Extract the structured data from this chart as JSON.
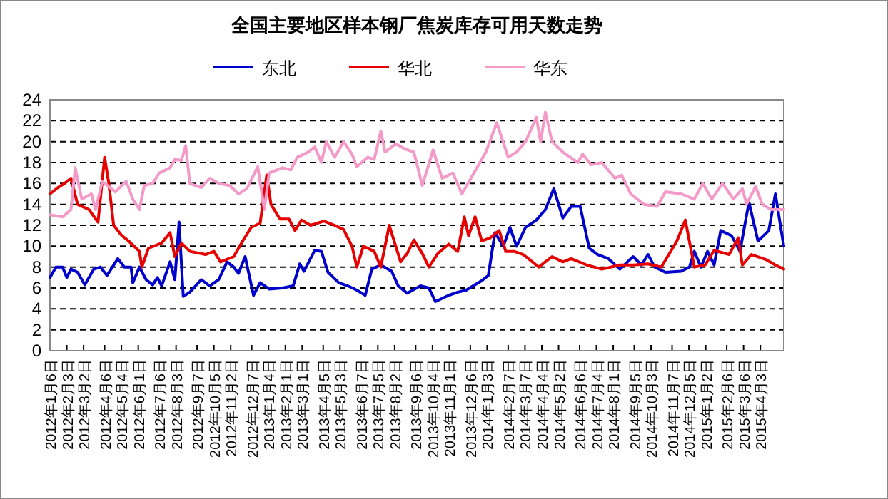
{
  "chart_data": {
    "type": "line",
    "title": "全国主要地区样本钢厂焦炭库存可用天数走势",
    "legend": "top",
    "grid": "y",
    "line_style": "solid",
    "marker": "none",
    "xlim": [
      "2012-01-06",
      "2015-05-12"
    ],
    "ylim": [
      0,
      24
    ],
    "yticks": [
      0,
      2,
      4,
      6,
      8,
      10,
      12,
      14,
      16,
      18,
      20,
      22,
      24
    ],
    "xticks": [
      {
        "value": "2012-01-06",
        "label": "2012年1月6日"
      },
      {
        "value": "2012-02-03",
        "label": "2012年2月3日"
      },
      {
        "value": "2012-03-02",
        "label": "2012年3月2日"
      },
      {
        "value": "2012-04-06",
        "label": "2012年4月6日"
      },
      {
        "value": "2012-05-04",
        "label": "2012年5月4日"
      },
      {
        "value": "2012-06-01",
        "label": "2012年6月1日"
      },
      {
        "value": "2012-07-06",
        "label": "2012年7月6日"
      },
      {
        "value": "2012-08-03",
        "label": "2012年8月3日"
      },
      {
        "value": "2012-09-07",
        "label": "2012年9月7日"
      },
      {
        "value": "2012-10-05",
        "label": "2012年10月5日"
      },
      {
        "value": "2012-11-02",
        "label": "2012年11月2日"
      },
      {
        "value": "2012-12-07",
        "label": "2012年12月7日"
      },
      {
        "value": "2013-01-04",
        "label": "2013年1月4日"
      },
      {
        "value": "2013-02-01",
        "label": "2013年2月1日"
      },
      {
        "value": "2013-03-01",
        "label": "2013年3月1日"
      },
      {
        "value": "2013-04-05",
        "label": "2013年4月5日"
      },
      {
        "value": "2013-05-03",
        "label": "2013年5月3日"
      },
      {
        "value": "2013-06-07",
        "label": "2013年6月7日"
      },
      {
        "value": "2013-07-05",
        "label": "2013年7月5日"
      },
      {
        "value": "2013-08-02",
        "label": "2013年8月2日"
      },
      {
        "value": "2013-09-06",
        "label": "2013年9月6日"
      },
      {
        "value": "2013-10-04",
        "label": "2013年10月4日"
      },
      {
        "value": "2013-11-01",
        "label": "2013年11月1日"
      },
      {
        "value": "2013-12-06",
        "label": "2013年12月6日"
      },
      {
        "value": "2014-01-03",
        "label": "2014年1月3日"
      },
      {
        "value": "2014-02-07",
        "label": "2014年2月7日"
      },
      {
        "value": "2014-03-07",
        "label": "2014年3月7日"
      },
      {
        "value": "2014-04-04",
        "label": "2014年4月4日"
      },
      {
        "value": "2014-05-02",
        "label": "2014年5月2日"
      },
      {
        "value": "2014-06-06",
        "label": "2014年6月6日"
      },
      {
        "value": "2014-07-04",
        "label": "2014年7月4日"
      },
      {
        "value": "2014-08-01",
        "label": "2014年8月1日"
      },
      {
        "value": "2014-09-05",
        "label": "2014年9月5日"
      },
      {
        "value": "2014-10-03",
        "label": "2014年10月3日"
      },
      {
        "value": "2014-11-07",
        "label": "2014年11月7日"
      },
      {
        "value": "2014-12-05",
        "label": "2014年12月5日"
      },
      {
        "value": "2015-01-02",
        "label": "2015年1月2日"
      },
      {
        "value": "2015-02-06",
        "label": "2015年2月6日"
      },
      {
        "value": "2015-03-06",
        "label": "2015年3月6日"
      },
      {
        "value": "2015-04-03",
        "label": "2015年4月3日"
      }
    ],
    "series": [
      {
        "name": "东北",
        "color": "#0000cc",
        "x": [
          "2012-01-06",
          "2012-01-16",
          "2012-01-27",
          "2012-02-03",
          "2012-02-10",
          "2012-02-21",
          "2012-03-04",
          "2012-03-19",
          "2012-03-30",
          "2012-04-10",
          "2012-04-28",
          "2012-05-09",
          "2012-05-20",
          "2012-05-23",
          "2012-06-03",
          "2012-06-14",
          "2012-06-25",
          "2012-07-03",
          "2012-07-10",
          "2012-07-24",
          "2012-08-01",
          "2012-08-08",
          "2012-08-15",
          "2012-08-26",
          "2012-09-14",
          "2012-09-28",
          "2012-10-13",
          "2012-10-27",
          "2012-11-07",
          "2012-11-15",
          "2012-11-26",
          "2012-12-10",
          "2012-12-21",
          "2013-01-05",
          "2013-01-27",
          "2013-02-14",
          "2013-02-25",
          "2013-03-04",
          "2013-03-22",
          "2013-04-02",
          "2013-04-13",
          "2013-05-01",
          "2013-05-16",
          "2013-05-31",
          "2013-06-14",
          "2013-06-25",
          "2013-07-10",
          "2013-07-28",
          "2013-08-08",
          "2013-08-23",
          "2013-09-14",
          "2013-09-28",
          "2013-10-09",
          "2013-10-31",
          "2013-11-15",
          "2013-11-29",
          "2013-12-25",
          "2014-01-05",
          "2014-01-16",
          "2014-01-30",
          "2014-02-10",
          "2014-02-21",
          "2014-03-08",
          "2014-03-26",
          "2014-04-10",
          "2014-04-24",
          "2014-05-09",
          "2014-05-23",
          "2014-06-07",
          "2014-06-22",
          "2014-07-06",
          "2014-07-24",
          "2014-08-12",
          "2014-09-03",
          "2014-09-17",
          "2014-09-28",
          "2014-10-09",
          "2014-10-27",
          "2014-11-22",
          "2014-12-06",
          "2014-12-14",
          "2014-12-25",
          "2015-01-05",
          "2015-01-16",
          "2015-01-27",
          "2015-02-14",
          "2015-02-28",
          "2015-03-15",
          "2015-03-30",
          "2015-04-17",
          "2015-04-28",
          "2015-05-12"
        ],
        "values": [
          7.0,
          8.0,
          8.0,
          7.0,
          7.8,
          7.5,
          6.3,
          7.8,
          8.0,
          7.2,
          8.8,
          8.0,
          8.0,
          6.5,
          8.0,
          6.8,
          6.3,
          7.0,
          6.2,
          8.5,
          6.8,
          12.3,
          5.2,
          5.6,
          6.8,
          6.2,
          6.8,
          8.5,
          8.0,
          7.4,
          9.0,
          5.3,
          6.5,
          5.9,
          6.0,
          6.2,
          8.3,
          7.6,
          9.6,
          9.5,
          7.5,
          6.5,
          6.2,
          5.8,
          5.3,
          7.8,
          8.2,
          7.6,
          6.2,
          5.5,
          6.2,
          6.0,
          4.7,
          5.3,
          5.6,
          5.8,
          6.7,
          7.2,
          11.3,
          10.0,
          11.8,
          10.0,
          11.8,
          12.5,
          13.5,
          15.5,
          12.7,
          13.8,
          13.8,
          9.8,
          9.2,
          8.8,
          7.8,
          9.0,
          8.2,
          9.2,
          8.0,
          7.5,
          7.6,
          8.0,
          9.5,
          8.0,
          9.5,
          8.2,
          11.5,
          11.0,
          9.5,
          14.2,
          10.5,
          11.5,
          15.0,
          10.0
        ]
      },
      {
        "name": "华北",
        "color": "#e60000",
        "x": [
          "2012-01-06",
          "2012-01-19",
          "2012-01-30",
          "2012-02-10",
          "2012-02-21",
          "2012-03-11",
          "2012-03-26",
          "2012-04-06",
          "2012-04-13",
          "2012-04-21",
          "2012-05-05",
          "2012-05-16",
          "2012-06-03",
          "2012-06-07",
          "2012-06-18",
          "2012-07-10",
          "2012-07-24",
          "2012-08-01",
          "2012-08-12",
          "2012-08-26",
          "2012-09-21",
          "2012-10-05",
          "2012-10-16",
          "2012-11-07",
          "2012-11-22",
          "2012-12-06",
          "2012-12-21",
          "2013-01-01",
          "2013-01-08",
          "2013-01-23",
          "2013-02-07",
          "2013-02-17",
          "2013-02-28",
          "2013-03-15",
          "2013-04-06",
          "2013-04-24",
          "2013-05-09",
          "2013-05-23",
          "2013-05-31",
          "2013-06-11",
          "2013-06-29",
          "2013-07-10",
          "2013-07-24",
          "2013-08-12",
          "2013-08-23",
          "2013-09-03",
          "2013-09-17",
          "2013-09-28",
          "2013-10-13",
          "2013-10-31",
          "2013-11-15",
          "2013-11-26",
          "2013-12-03",
          "2013-12-14",
          "2013-12-25",
          "2014-01-08",
          "2014-01-23",
          "2014-02-03",
          "2014-02-17",
          "2014-03-04",
          "2014-03-30",
          "2014-04-21",
          "2014-05-09",
          "2014-05-23",
          "2014-06-18",
          "2014-07-13",
          "2014-08-12",
          "2014-09-03",
          "2014-09-28",
          "2014-10-20",
          "2014-11-15",
          "2014-11-29",
          "2014-12-14",
          "2015-01-01",
          "2015-01-16",
          "2015-02-10",
          "2015-02-25",
          "2015-03-04",
          "2015-03-19",
          "2015-04-13",
          "2015-04-28",
          "2015-05-12"
        ],
        "values": [
          15.0,
          15.6,
          16.0,
          16.5,
          14.0,
          13.5,
          12.3,
          18.5,
          16.0,
          12.0,
          11.0,
          10.5,
          9.5,
          8.0,
          9.8,
          10.3,
          11.3,
          9.0,
          10.3,
          9.5,
          9.2,
          9.5,
          8.5,
          9.0,
          10.5,
          11.8,
          12.2,
          16.8,
          14.0,
          12.6,
          12.6,
          11.5,
          12.5,
          12.0,
          12.4,
          12.0,
          11.6,
          10.0,
          8.0,
          10.0,
          9.5,
          8.0,
          12.0,
          8.5,
          9.3,
          10.6,
          9.3,
          8.0,
          9.3,
          10.2,
          9.5,
          12.8,
          11.0,
          12.8,
          10.5,
          10.8,
          11.5,
          9.5,
          9.5,
          9.2,
          8.0,
          9.0,
          8.5,
          8.8,
          8.2,
          7.8,
          8.2,
          8.2,
          8.3,
          8.0,
          10.5,
          12.5,
          8.0,
          8.2,
          9.6,
          9.2,
          10.8,
          8.2,
          9.2,
          8.7,
          8.2,
          7.8
        ]
      },
      {
        "name": "华东",
        "color": "#f39ac8",
        "x": [
          "2012-01-06",
          "2012-01-27",
          "2012-02-10",
          "2012-02-17",
          "2012-02-28",
          "2012-03-15",
          "2012-03-22",
          "2012-04-02",
          "2012-04-24",
          "2012-05-12",
          "2012-05-23",
          "2012-06-03",
          "2012-06-11",
          "2012-06-25",
          "2012-07-06",
          "2012-07-24",
          "2012-08-01",
          "2012-08-12",
          "2012-08-19",
          "2012-08-26",
          "2012-09-14",
          "2012-09-28",
          "2012-10-13",
          "2012-10-31",
          "2012-11-15",
          "2012-11-29",
          "2012-12-17",
          "2012-12-28",
          "2013-01-05",
          "2013-01-27",
          "2013-02-10",
          "2013-02-21",
          "2013-03-11",
          "2013-03-22",
          "2013-04-02",
          "2013-04-10",
          "2013-04-24",
          "2013-05-09",
          "2013-05-23",
          "2013-05-31",
          "2013-06-18",
          "2013-06-29",
          "2013-07-10",
          "2013-07-17",
          "2013-08-04",
          "2013-08-19",
          "2013-09-03",
          "2013-09-17",
          "2013-10-05",
          "2013-10-20",
          "2013-11-07",
          "2013-11-22",
          "2013-12-17",
          "2014-01-01",
          "2014-01-19",
          "2014-02-07",
          "2014-02-21",
          "2014-03-08",
          "2014-03-26",
          "2014-04-02",
          "2014-04-10",
          "2014-04-21",
          "2014-05-09",
          "2014-06-03",
          "2014-06-11",
          "2014-06-25",
          "2014-07-13",
          "2014-08-04",
          "2014-08-15",
          "2014-08-30",
          "2014-09-21",
          "2014-10-13",
          "2014-10-27",
          "2014-11-22",
          "2014-12-14",
          "2014-12-28",
          "2015-01-12",
          "2015-01-30",
          "2015-02-17",
          "2015-03-04",
          "2015-03-11",
          "2015-03-26",
          "2015-04-06",
          "2015-04-21",
          "2015-05-12"
        ],
        "values": [
          13.0,
          12.8,
          13.5,
          17.5,
          14.5,
          15.0,
          13.5,
          16.2,
          15.2,
          16.2,
          14.5,
          13.5,
          15.8,
          16.0,
          17.0,
          17.5,
          18.3,
          18.2,
          19.6,
          16.0,
          15.6,
          16.5,
          16.0,
          15.8,
          15.0,
          15.5,
          17.6,
          13.5,
          17.0,
          17.5,
          17.3,
          18.5,
          19.0,
          19.5,
          18.0,
          20.0,
          18.5,
          20.0,
          18.8,
          17.6,
          18.5,
          18.3,
          21.0,
          19.0,
          19.8,
          19.3,
          19.0,
          15.8,
          19.2,
          16.5,
          17.0,
          15.0,
          17.5,
          19.0,
          21.8,
          18.5,
          19.0,
          20.0,
          22.3,
          20.0,
          22.8,
          20.0,
          19.0,
          18.0,
          18.8,
          17.8,
          18.0,
          16.5,
          16.8,
          15.0,
          14.0,
          13.8,
          15.2,
          15.0,
          14.5,
          16.0,
          14.5,
          16.0,
          14.5,
          15.5,
          14.0,
          15.7,
          14.0,
          13.5,
          13.5
        ]
      }
    ]
  }
}
